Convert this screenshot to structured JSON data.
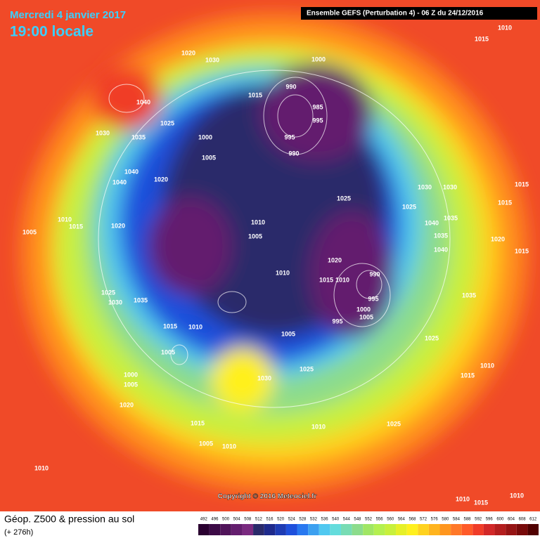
{
  "header": {
    "date": "Mercredi 4 janvier 2017",
    "time": "19:00 locale",
    "run": "Ensemble GEFS  (Perturbation 4)  -  06 Z du 24/12/2016"
  },
  "map": {
    "pressure_labels": [
      1010,
      1015,
      1000,
      1020,
      1030,
      1040,
      1025,
      1030,
      1035,
      1015,
      990,
      995,
      985,
      995,
      990,
      1000,
      1005,
      1040,
      1040,
      1020,
      1030,
      1030,
      1015,
      1015,
      1025,
      1025,
      1040,
      1035,
      1035,
      1040,
      1020,
      1015,
      1010,
      1015,
      1020,
      1005,
      1010,
      1005,
      1010,
      1020,
      1015,
      1010,
      990,
      995,
      1000,
      1005,
      995,
      1025,
      1030,
      1035,
      1035,
      1015,
      1010,
      1005,
      1005,
      1025,
      1030,
      1025,
      1010,
      1015,
      1000,
      1005,
      1020,
      1015,
      1025,
      1010,
      1005,
      1010,
      1010,
      1010,
      1015,
      1010
    ]
  },
  "copyright": "Copyright © 2016 Meteociel.fr",
  "footer": {
    "title": "Géop. Z500 & pression au sol",
    "lead": "(+ 276h)"
  },
  "legend": {
    "labels": [
      492,
      496,
      500,
      504,
      508,
      512,
      516,
      520,
      524,
      528,
      532,
      536,
      540,
      544,
      548,
      552,
      556,
      560,
      564,
      568,
      572,
      576,
      580,
      584,
      588,
      592,
      596,
      600,
      604,
      608,
      612
    ],
    "colors": [
      "#2a0030",
      "#3c0a46",
      "#50145a",
      "#641e6e",
      "#7a2a80",
      "#2a2a6a",
      "#1e2a8c",
      "#1e3cb4",
      "#1e50dc",
      "#2878f0",
      "#3ca0f0",
      "#50c8f0",
      "#64dcdc",
      "#78dcb4",
      "#8cdc8c",
      "#a0e664",
      "#b4f050",
      "#c8f03c",
      "#e6f028",
      "#fff01e",
      "#ffd21e",
      "#ffb41e",
      "#ff961e",
      "#ff7828",
      "#ff5a28",
      "#f03c28",
      "#d22828",
      "#b41e1e",
      "#961414",
      "#780a0a",
      "#500000"
    ]
  }
}
